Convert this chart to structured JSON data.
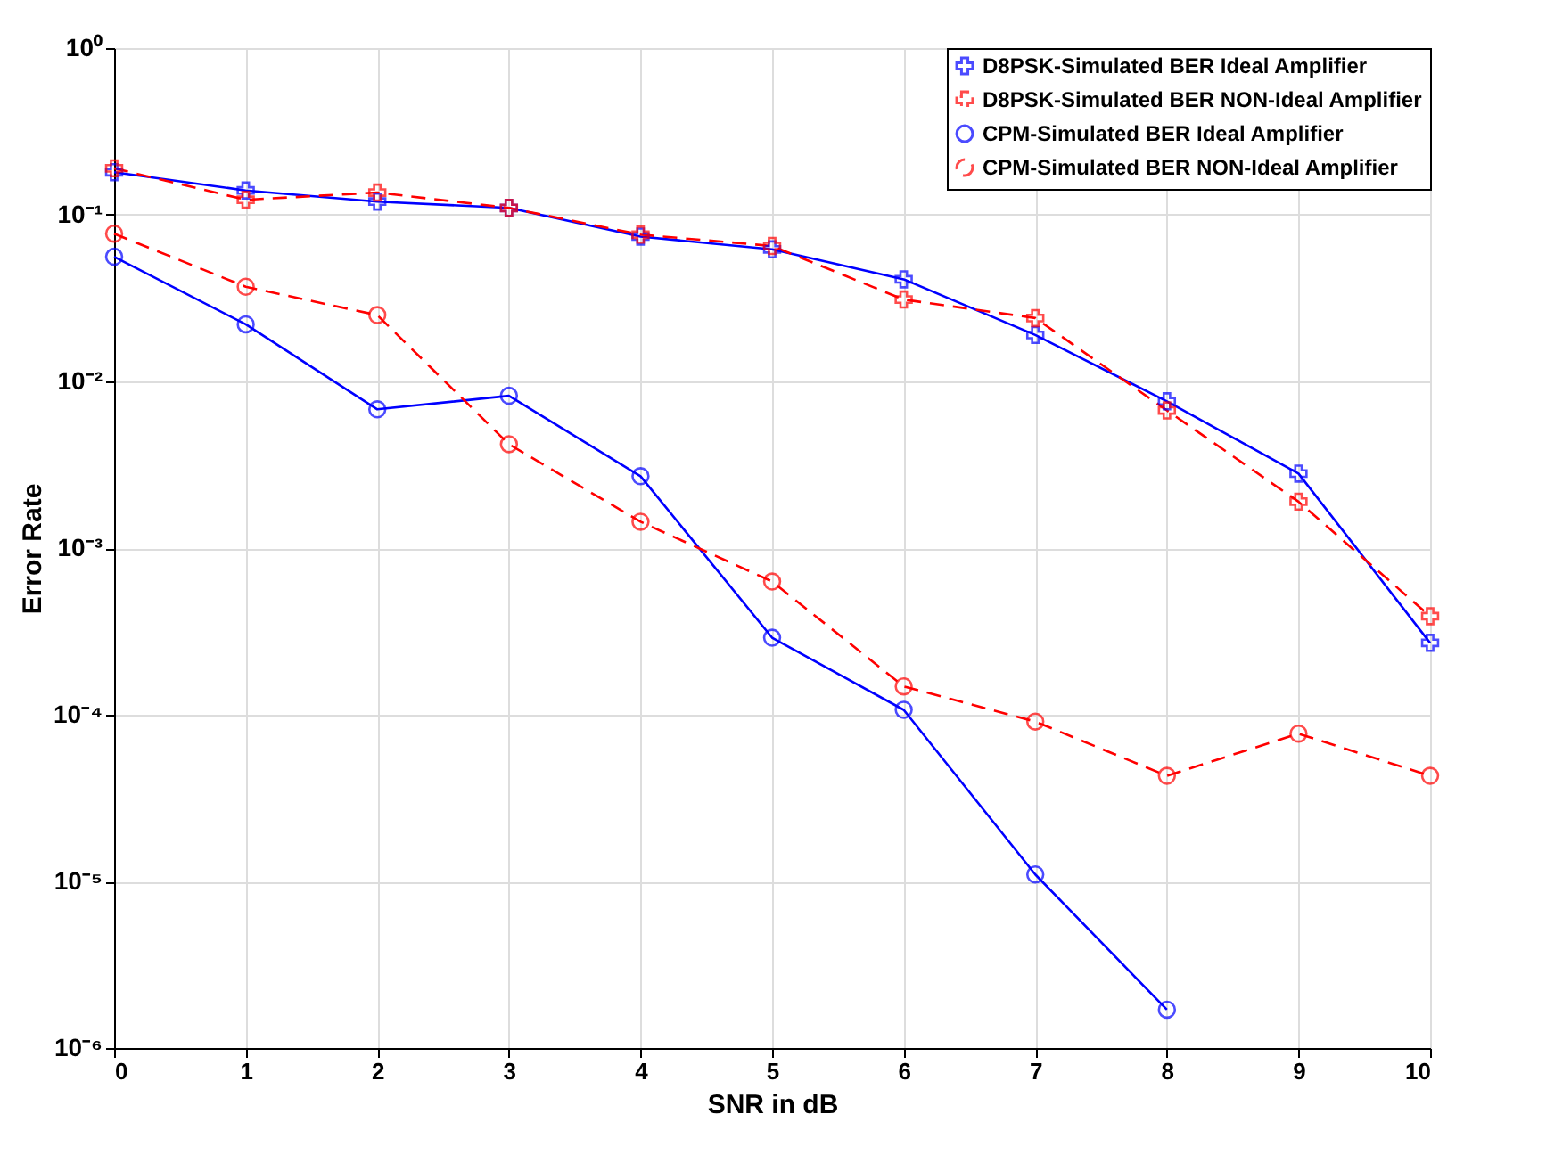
{
  "chart_data": {
    "type": "line",
    "xlabel": "SNR in dB",
    "ylabel": "Error Rate",
    "x": [
      0,
      1,
      2,
      3,
      4,
      5,
      6,
      7,
      8,
      9,
      10
    ],
    "series": [
      {
        "name": "D8PSK-Simulated BER Ideal Amplifier",
        "color": "#0000ff",
        "marker": "cross",
        "line_style": "solid",
        "values": [
          0.18,
          0.14,
          0.12,
          0.11,
          0.074,
          0.062,
          0.041,
          0.019,
          0.0076,
          0.0028,
          0.00027
        ]
      },
      {
        "name": "D8PSK-Simulated BER NON-Ideal Amplifier",
        "color": "#ff0000",
        "marker": "cross",
        "line_style": "dashed",
        "values": [
          0.19,
          0.123,
          0.136,
          0.11,
          0.076,
          0.065,
          0.031,
          0.024,
          0.0067,
          0.0019,
          0.00039
        ]
      },
      {
        "name": "CPM-Simulated BER Ideal Amplifier",
        "color": "#0000ff",
        "marker": "circle",
        "line_style": "solid",
        "values": [
          0.056,
          0.022,
          0.0068,
          0.0082,
          0.0027,
          0.00029,
          0.000107,
          1.1e-05,
          1.7e-06,
          null,
          null
        ]
      },
      {
        "name": "CPM-Simulated BER NON-Ideal Amplifier",
        "color": "#ff0000",
        "marker": "circle",
        "line_style": "dashed",
        "values": [
          0.077,
          0.037,
          0.025,
          0.0042,
          0.00144,
          0.00063,
          0.000148,
          9.1e-05,
          4.3e-05,
          7.7e-05,
          4.3e-05
        ]
      }
    ],
    "log": "y",
    "xlim": [
      0,
      10
    ],
    "xticks": [
      0,
      1,
      2,
      3,
      4,
      5,
      6,
      7,
      8,
      9,
      10
    ],
    "ylim": [
      1e-06,
      1
    ],
    "yticks": [
      {
        "value": 1e-06,
        "label": "10⁻⁶"
      },
      {
        "value": 1e-05,
        "label": "10⁻⁵"
      },
      {
        "value": 0.0001,
        "label": "10⁻⁴"
      },
      {
        "value": 0.001,
        "label": "10⁻³"
      },
      {
        "value": 0.01,
        "label": "10⁻²"
      },
      {
        "value": 0.1,
        "label": "10⁻¹"
      },
      {
        "value": 1,
        "label": "10⁰"
      }
    ],
    "grid": true,
    "legend": "top right"
  }
}
